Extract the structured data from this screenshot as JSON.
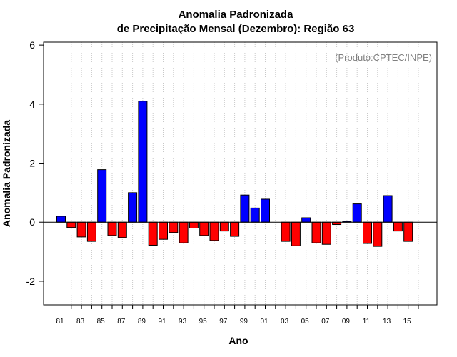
{
  "chart_data": {
    "type": "bar",
    "title": "Anomalia Padronizada",
    "subtitle": "de Precipitação Mensal (Dezembro): Região 63",
    "xlabel": "Ano",
    "ylabel": "Anomalia Padronizada",
    "credit": "(Produto:CPTEC/INPE)",
    "ylim": [
      -2.8,
      6.1
    ],
    "yticks": [
      -2,
      0,
      2,
      4,
      6
    ],
    "grid": "vertical-dotted",
    "positive_color": "#0000ff",
    "negative_color": "#ff0000",
    "categories": [
      "1981",
      "1982",
      "1983",
      "1984",
      "1985",
      "1986",
      "1987",
      "1988",
      "1989",
      "1990",
      "1991",
      "1992",
      "1993",
      "1994",
      "1995",
      "1996",
      "1997",
      "1998",
      "1999",
      "2000",
      "2001",
      "2002",
      "2003",
      "2004",
      "2005",
      "2006",
      "2007",
      "2008",
      "2009",
      "2010",
      "2011",
      "2012",
      "2013",
      "2014",
      "2015",
      "2016"
    ],
    "xtick_labels": [
      "81",
      "",
      "83",
      "",
      "85",
      "",
      "87",
      "",
      "89",
      "",
      "91",
      "",
      "93",
      "",
      "95",
      "",
      "97",
      "",
      "99",
      "",
      "01",
      "",
      "03",
      "",
      "05",
      "",
      "07",
      "",
      "09",
      "",
      "11",
      "",
      "13",
      "",
      "15",
      ""
    ],
    "values": [
      0.2,
      -0.18,
      -0.5,
      -0.65,
      1.78,
      -0.45,
      -0.52,
      1.0,
      4.1,
      -0.78,
      -0.58,
      -0.35,
      -0.7,
      -0.2,
      -0.45,
      -0.62,
      -0.3,
      -0.48,
      0.92,
      0.48,
      0.78,
      null,
      -0.65,
      -0.8,
      0.15,
      -0.7,
      -0.75,
      -0.08,
      0.03,
      0.62,
      -0.72,
      -0.82,
      0.9,
      -0.3,
      -0.65,
      null
    ]
  }
}
